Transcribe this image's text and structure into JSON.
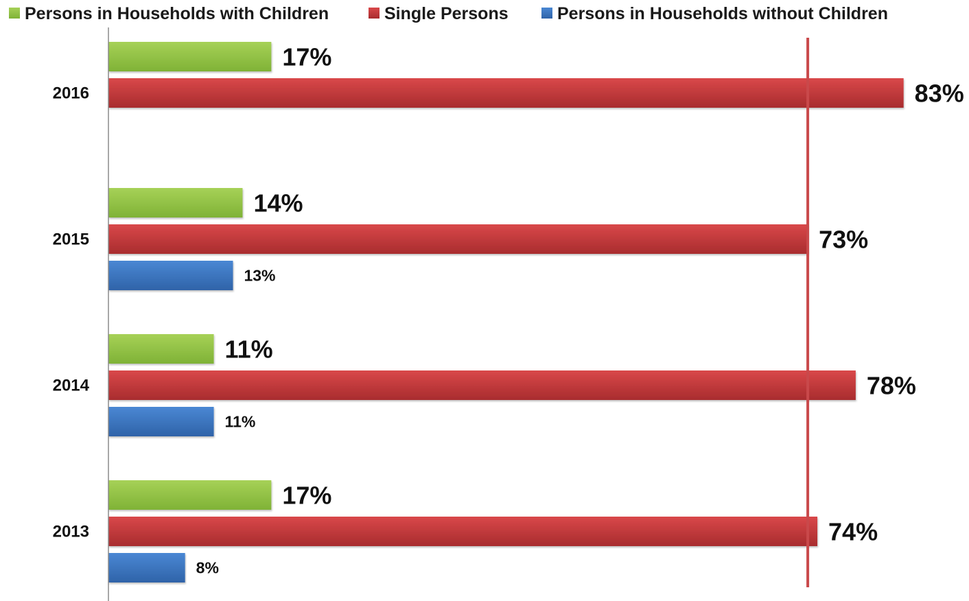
{
  "chart_data": {
    "type": "bar",
    "orientation": "horizontal",
    "categories": [
      "2016",
      "2015",
      "2014",
      "2013"
    ],
    "series": [
      {
        "name": "Persons in Households with Children",
        "color": "#8cbe3f",
        "values": [
          17,
          14,
          11,
          17
        ],
        "labels": [
          "17%",
          "14%",
          "11%",
          "17%"
        ]
      },
      {
        "name": "Single Persons",
        "color": "#c0383a",
        "values": [
          83,
          73,
          78,
          74
        ],
        "labels": [
          "83%",
          "73%",
          "78%",
          "74%"
        ]
      },
      {
        "name": "Persons in Households without Children",
        "color": "#3a75c1",
        "values": [
          null,
          13,
          11,
          8
        ],
        "labels": [
          "",
          "13%",
          "11%",
          "8%"
        ]
      }
    ],
    "xlim": [
      0,
      100
    ],
    "reference_line_value": 73,
    "legend_position": "top",
    "grid": false,
    "title": "",
    "xlabel": "",
    "ylabel": ""
  }
}
